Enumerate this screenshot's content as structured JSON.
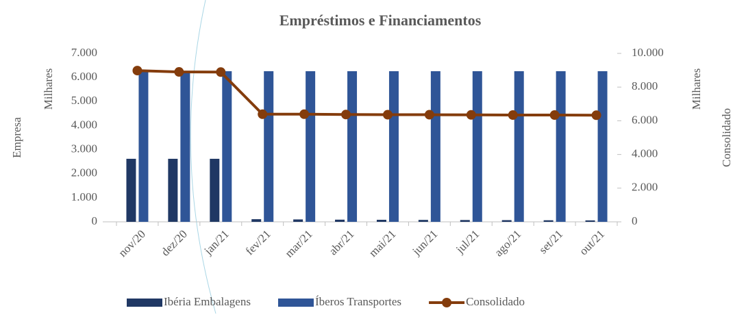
{
  "chart_data": {
    "type": "bar",
    "title": "Empréstimos e Financiamentos",
    "categories": [
      "nov/20",
      "dez/20",
      "jan/21",
      "fev/21",
      "mar/21",
      "abr/21",
      "mai/21",
      "jun/21",
      "jul/21",
      "ago/21",
      "set/21",
      "out/21"
    ],
    "series": [
      {
        "name": "Ibéria Embalagens",
        "color": "#203864",
        "values": [
          2620,
          2620,
          2620,
          110,
          100,
          90,
          85,
          80,
          75,
          70,
          65,
          60
        ]
      },
      {
        "name": "Íberos Transportes",
        "color": "#2f5597",
        "values": [
          6260,
          6260,
          6260,
          6260,
          6260,
          6260,
          6260,
          6260,
          6260,
          6260,
          6260,
          6260
        ]
      },
      {
        "name": "Consolidado",
        "color": "#843c0c",
        "type": "line",
        "axis": "y2",
        "values": [
          8980,
          8900,
          8890,
          6390,
          6390,
          6370,
          6360,
          6360,
          6350,
          6340,
          6340,
          6330
        ]
      }
    ],
    "ylabel": "Empresa",
    "yunit": "Milhares",
    "y2label": "Consolidado",
    "y2unit": "Milhares",
    "ylim": [
      0,
      7000
    ],
    "yticks": [
      0,
      {
        "value": 1000,
        "label": "1.000"
      },
      {
        "value": 2000,
        "label": "2.000"
      },
      {
        "value": 3000,
        "label": "3.000"
      },
      {
        "value": 4000,
        "label": "4.000"
      },
      {
        "value": 5000,
        "label": "5.000"
      },
      {
        "value": 6000,
        "label": "6.000"
      },
      {
        "value": 7000,
        "label": "7.000"
      }
    ],
    "y2lim": [
      0,
      10000
    ],
    "y2ticks": [
      0,
      {
        "value": 2000,
        "label": "2.000"
      },
      {
        "value": 4000,
        "label": "4.000"
      },
      {
        "value": 6000,
        "label": "6.000"
      },
      {
        "value": 8000,
        "label": "8.000"
      },
      {
        "value": 10000,
        "label": "10.000"
      }
    ],
    "grid": false,
    "legend": "bottom"
  }
}
